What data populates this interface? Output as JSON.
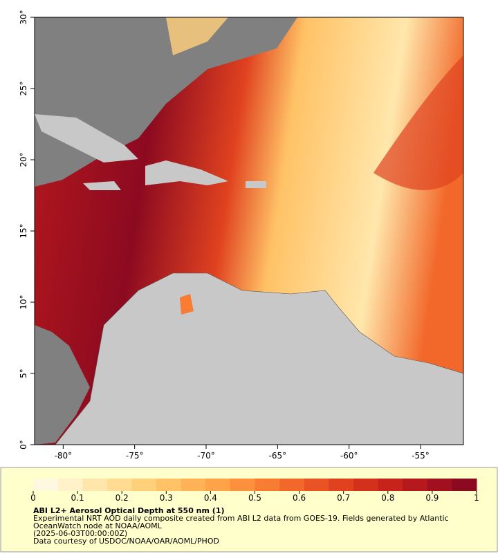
{
  "map": {
    "xlim": [
      -82,
      -52
    ],
    "ylim": [
      0,
      30
    ],
    "xticks": [
      {
        "value": -80,
        "label": "-80°"
      },
      {
        "value": -75,
        "label": "-75°"
      },
      {
        "value": -70,
        "label": "-70°"
      },
      {
        "value": -65,
        "label": "-65°"
      },
      {
        "value": -60,
        "label": "-60°"
      },
      {
        "value": -55,
        "label": "-55°"
      }
    ],
    "yticks": [
      {
        "value": 0,
        "label": "0°"
      },
      {
        "value": 5,
        "label": "5°"
      },
      {
        "value": 10,
        "label": "10°"
      },
      {
        "value": 15,
        "label": "15°"
      },
      {
        "value": 20,
        "label": "20°"
      },
      {
        "value": 25,
        "label": "25°"
      },
      {
        "value": 30,
        "label": "30°"
      }
    ]
  },
  "colorbar": {
    "range": [
      0,
      1
    ],
    "ticks": [
      0,
      0.1,
      0.2,
      0.3,
      0.4,
      0.5,
      0.6,
      0.7,
      0.8,
      0.9,
      1
    ],
    "colors": [
      "#fff8e0",
      "#fff1c8",
      "#ffe7ac",
      "#ffdc92",
      "#ffd07a",
      "#ffc266",
      "#ffb356",
      "#ffa248",
      "#fd903c",
      "#f87c32",
      "#f2682a",
      "#ea5424",
      "#e0421f",
      "#d4311c",
      "#c6241b",
      "#b5191d",
      "#a1101e",
      "#8c0a20"
    ]
  },
  "caption": {
    "title": "ABI L2+ Aerosol Optical Depth at 550 nm (1)",
    "lines": [
      "Experimental NRT AOD daily composite created from ABI L2 data from GOES-19. Fields generated by Atlantic",
      "OceanWatch node at NOAA/AOML",
      "(2025-06-03T00:00:00Z)",
      "Data courtesy of USDOC/NOAA/OAR/AOML/PHOD"
    ]
  }
}
